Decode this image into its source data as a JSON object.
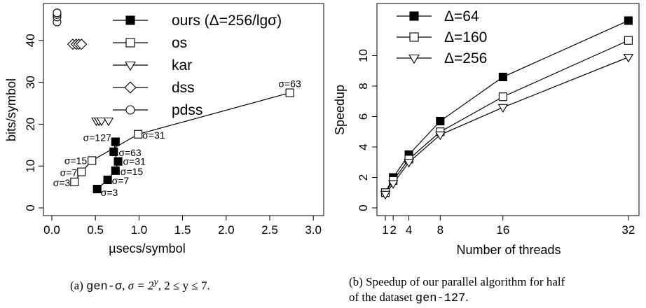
{
  "chart_data": [
    {
      "type": "scatter",
      "xlabel": "µsecs/symbol",
      "ylabel": "bits/symbol",
      "xlim": [
        0,
        3.0
      ],
      "ylim": [
        0,
        47
      ],
      "xticks": [
        "0.0",
        "0.5",
        "1.0",
        "1.5",
        "2.0",
        "2.5",
        "3.0"
      ],
      "yticks": [
        "0",
        "10",
        "20",
        "30",
        "40"
      ],
      "legend_position": "top-right",
      "series": [
        {
          "name": "ours (Δ=256/lgσ)",
          "marker": "filled-square",
          "connected": true,
          "points": [
            {
              "x": 0.52,
              "y": 4.5,
              "label": "σ=3"
            },
            {
              "x": 0.64,
              "y": 6.7,
              "label": "σ=7"
            },
            {
              "x": 0.73,
              "y": 8.9,
              "label": "σ=15"
            },
            {
              "x": 0.76,
              "y": 11.1,
              "label": "σ=31"
            },
            {
              "x": 0.71,
              "y": 13.4,
              "label": "σ=63"
            },
            {
              "x": 0.73,
              "y": 15.8,
              "label": "σ=127"
            }
          ]
        },
        {
          "name": "os",
          "marker": "open-square",
          "connected": true,
          "points": [
            {
              "x": 0.26,
              "y": 6.2,
              "label": "σ=3"
            },
            {
              "x": 0.34,
              "y": 8.6,
              "label": "σ=7"
            },
            {
              "x": 0.46,
              "y": 11.3,
              "label": "σ=15"
            },
            {
              "x": 0.99,
              "y": 17.6,
              "label": "σ=31"
            },
            {
              "x": 2.73,
              "y": 27.5,
              "label": "σ=63"
            }
          ]
        },
        {
          "name": "kar",
          "marker": "open-triangle-down",
          "connected": false,
          "points": [
            {
              "x": 0.51,
              "y": 20.8
            },
            {
              "x": 0.54,
              "y": 20.8
            },
            {
              "x": 0.57,
              "y": 20.8
            },
            {
              "x": 0.65,
              "y": 20.8
            }
          ]
        },
        {
          "name": "dss",
          "marker": "open-diamond",
          "connected": false,
          "points": [
            {
              "x": 0.24,
              "y": 39.1
            },
            {
              "x": 0.28,
              "y": 39.1
            },
            {
              "x": 0.31,
              "y": 39.1
            },
            {
              "x": 0.34,
              "y": 39.1
            }
          ]
        },
        {
          "name": "pdss",
          "marker": "open-circle",
          "connected": false,
          "points": [
            {
              "x": 0.06,
              "y": 44.4
            },
            {
              "x": 0.06,
              "y": 45.6
            },
            {
              "x": 0.06,
              "y": 46.2
            },
            {
              "x": 0.06,
              "y": 46.6
            }
          ]
        }
      ]
    },
    {
      "type": "line",
      "xlabel": "Number of threads",
      "ylabel": "Speedup",
      "xlim": [
        0,
        33
      ],
      "ylim": [
        0,
        12.5
      ],
      "x": [
        1,
        2,
        4,
        8,
        16,
        32
      ],
      "xticks": [
        "1",
        "2",
        "4",
        "8",
        "16",
        "32"
      ],
      "yticks": [
        "0",
        "2",
        "4",
        "6",
        "8",
        "10"
      ],
      "legend_position": "top-left",
      "series": [
        {
          "name": "Δ=64",
          "marker": "filled-square",
          "values": [
            1.0,
            2.0,
            3.5,
            5.7,
            8.6,
            12.3
          ]
        },
        {
          "name": "Δ=160",
          "marker": "open-square",
          "values": [
            1.0,
            1.8,
            3.2,
            5.0,
            7.3,
            11.0
          ]
        },
        {
          "name": "Δ=256",
          "marker": "open-triangle-down",
          "values": [
            0.9,
            1.6,
            3.0,
            4.8,
            6.6,
            9.9
          ]
        }
      ]
    }
  ],
  "captions": {
    "a": {
      "prefix": "(a) ",
      "code": "gen-σ",
      "rest_prefix": ", ",
      "math": "σ = 2",
      "sup": "y",
      "math2": ", 2 ≤ y ≤ 7."
    },
    "b": {
      "line1_prefix": "(b) Speedup of our parallel algorithm for half",
      "line2_prefix": "of the dataset ",
      "code": "gen-127",
      "line2_suffix": "."
    }
  }
}
